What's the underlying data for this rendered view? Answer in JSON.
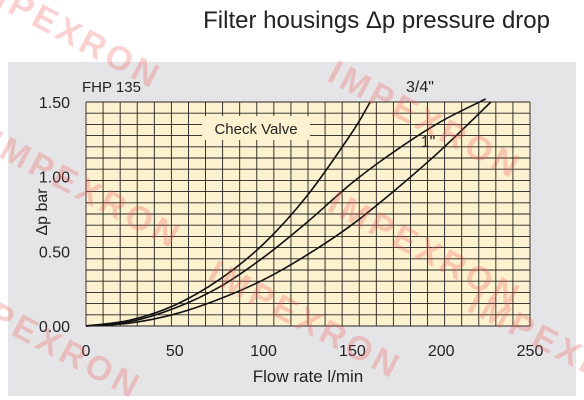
{
  "title": "Filter housings Δp pressure drop",
  "watermark": "IMPEXRON",
  "colors": {
    "panel_bg": "#e5e5e7",
    "plot_bg": "#fdf2cf",
    "grid": "#222222",
    "curve": "#111111",
    "watermark": "#ee5555"
  },
  "chart_data": {
    "type": "line",
    "title": "Filter housings Δp pressure drop",
    "subtitle": "FHP 135",
    "xlabel": "Flow rate l/min",
    "ylabel": "Δp bar",
    "xlim": [
      0,
      250
    ],
    "ylim": [
      0,
      1.5
    ],
    "xticks": [
      0,
      50,
      100,
      150,
      200,
      250
    ],
    "xtick_labels": [
      "0",
      "50",
      "100",
      "150",
      "200",
      "250"
    ],
    "yticks": [
      0,
      0.5,
      1.0,
      1.5
    ],
    "ytick_labels": [
      "0.00",
      "0.50",
      "1.00",
      "1.50"
    ],
    "grid": true,
    "annotations": [
      "Check Valve"
    ],
    "series": [
      {
        "name": "",
        "x": [
          0,
          25,
          50,
          75,
          100,
          125,
          150,
          160
        ],
        "y": [
          0,
          0.04,
          0.14,
          0.31,
          0.55,
          0.88,
          1.3,
          1.5
        ]
      },
      {
        "name": "3/4\"",
        "x": [
          0,
          25,
          50,
          75,
          100,
          125,
          150,
          175,
          200,
          225
        ],
        "y": [
          0,
          0.03,
          0.12,
          0.26,
          0.46,
          0.7,
          0.96,
          1.18,
          1.37,
          1.52
        ]
      },
      {
        "name": "1\"",
        "x": [
          0,
          25,
          50,
          75,
          100,
          125,
          150,
          175,
          200,
          228
        ],
        "y": [
          0,
          0.02,
          0.08,
          0.18,
          0.31,
          0.48,
          0.68,
          0.92,
          1.18,
          1.5
        ]
      }
    ]
  }
}
